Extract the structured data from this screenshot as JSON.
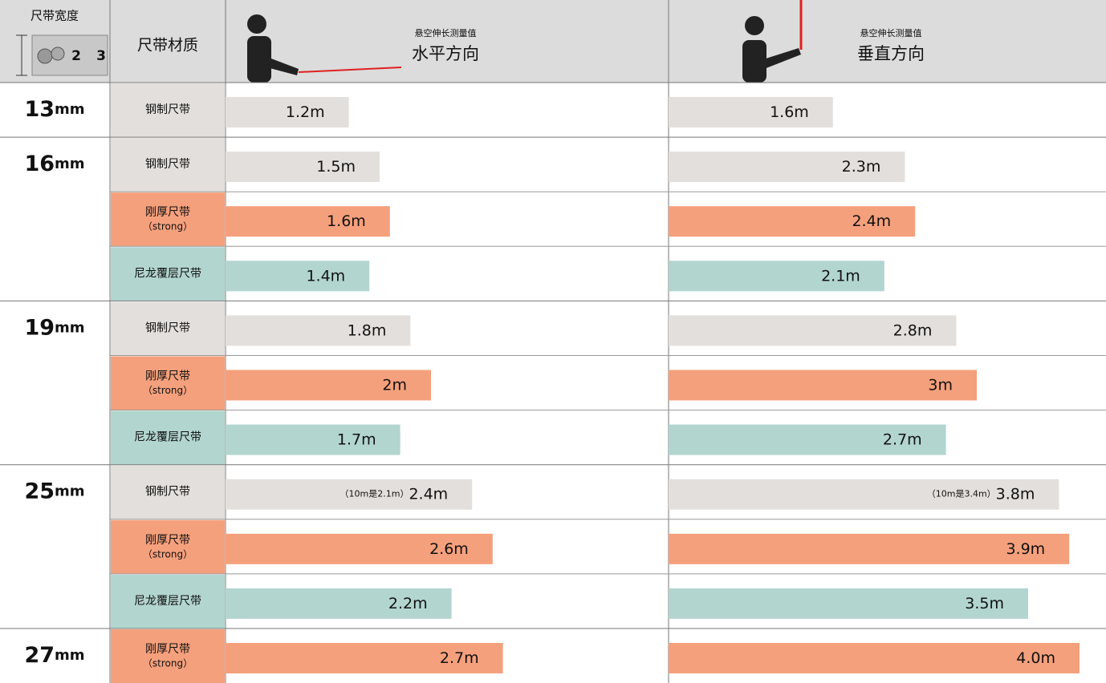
{
  "header": {
    "width_title": "尺带宽度",
    "tape_digits": [
      "2",
      "3"
    ],
    "material_title": "尺带材质",
    "columns": [
      {
        "subtitle": "悬空伸长测量值",
        "title": "水平方向"
      },
      {
        "subtitle": "悬空伸长测量值",
        "title": "垂直方向"
      }
    ]
  },
  "groups": [
    {
      "width": "13",
      "unit": "mm",
      "rows": [
        {
          "material": "钢制尺带",
          "color": "#e3dfdc",
          "values": [
            1.2,
            1.6
          ],
          "value_labels": [
            "1.2m",
            "1.6m"
          ]
        }
      ]
    },
    {
      "width": "16",
      "unit": "mm",
      "rows": [
        {
          "material": "钢制尺带",
          "color": "#e3dfdc",
          "values": [
            1.5,
            2.3
          ],
          "value_labels": [
            "1.5m",
            "2.3m"
          ]
        },
        {
          "material": "刚厚尺带",
          "material_note": "（strong）",
          "color": "#f5a07c",
          "values": [
            1.6,
            2.4
          ],
          "value_labels": [
            "1.6m",
            "2.4m"
          ]
        },
        {
          "material": "尼龙覆层尺带",
          "color": "#b2d5cf",
          "values": [
            1.4,
            2.1
          ],
          "value_labels": [
            "1.4m",
            "2.1m"
          ]
        }
      ]
    },
    {
      "width": "19",
      "unit": "mm",
      "rows": [
        {
          "material": "钢制尺带",
          "color": "#e3dfdc",
          "values": [
            1.8,
            2.8
          ],
          "value_labels": [
            "1.8m",
            "2.8m"
          ]
        },
        {
          "material": "刚厚尺带",
          "material_note": "（strong）",
          "color": "#f5a07c",
          "values": [
            2,
            3
          ],
          "value_labels": [
            "2m",
            "3m"
          ]
        },
        {
          "material": "尼龙覆层尺带",
          "color": "#b2d5cf",
          "values": [
            1.7,
            2.7
          ],
          "value_labels": [
            "1.7m",
            "2.7m"
          ]
        }
      ]
    },
    {
      "width": "25",
      "unit": "mm",
      "rows": [
        {
          "material": "钢制尺带",
          "color": "#e3dfdc",
          "values": [
            2.4,
            3.8
          ],
          "value_labels": [
            "2.4m",
            "3.8m"
          ],
          "notes": [
            "（10m是2.1m）",
            "（10m是3.4m）"
          ]
        },
        {
          "material": "刚厚尺带",
          "material_note": "（strong）",
          "color": "#f5a07c",
          "values": [
            2.6,
            3.9
          ],
          "value_labels": [
            "2.6m",
            "3.9m"
          ]
        },
        {
          "material": "尼龙覆层尺带",
          "color": "#b2d5cf",
          "values": [
            2.2,
            3.5
          ],
          "value_labels": [
            "2.2m",
            "3.5m"
          ]
        }
      ]
    },
    {
      "width": "27",
      "unit": "mm",
      "rows": [
        {
          "material": "刚厚尺带",
          "material_note": "（strong）",
          "color": "#f5a07c",
          "values": [
            2.7,
            4.0
          ],
          "value_labels": [
            "2.7m",
            "4.0m"
          ]
        }
      ]
    }
  ]
}
